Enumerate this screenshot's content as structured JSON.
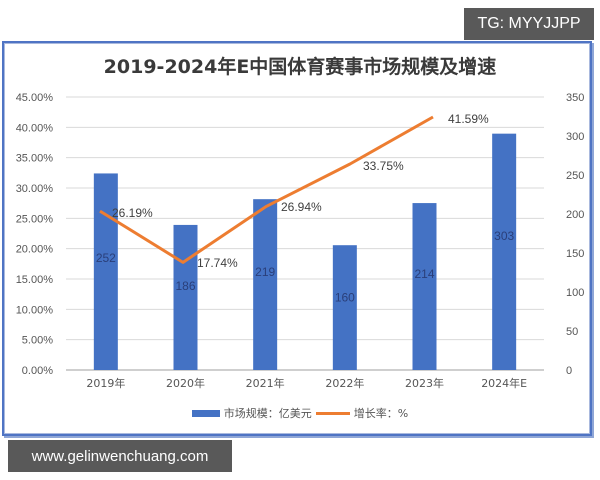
{
  "badges": {
    "top_right": "TG: MYYJJPP",
    "bottom_left": "www.gelinwenchuang.com"
  },
  "colors": {
    "bar": "#4472c4",
    "line": "#ed7d31",
    "frame": "#4f74c4"
  },
  "chart_data": {
    "type": "bar",
    "title": "2019-2024年E中国体育赛事市场规模及增速",
    "categories": [
      "2019年",
      "2020年",
      "2021年",
      "2022年",
      "2023年",
      "2024年E"
    ],
    "series": [
      {
        "name": "市场规模：亿美元",
        "type": "bar",
        "axis": "right",
        "values": [
          252,
          186,
          219,
          160,
          214,
          303
        ],
        "labels": [
          "252",
          "186",
          "219",
          "160",
          "214",
          "303"
        ]
      },
      {
        "name": "增长率：%",
        "type": "line",
        "axis": "left",
        "values": [
          26.19,
          17.74,
          26.94,
          null,
          33.75,
          41.59
        ],
        "labels": [
          "26.19%",
          "17.74%",
          "26.94%",
          "",
          "33.75%",
          "41.59%"
        ],
        "note": "line plotted 2019-2023 (33.75% label near 2022-2023 segment, 41.59% at 2023)"
      }
    ],
    "left_axis": {
      "ticks": [
        "0.00%",
        "5.00%",
        "10.00%",
        "15.00%",
        "20.00%",
        "25.00%",
        "30.00%",
        "35.00%",
        "40.00%",
        "45.00%"
      ],
      "range": [
        0,
        45
      ]
    },
    "right_axis": {
      "ticks": [
        "0",
        "50",
        "100",
        "150",
        "200",
        "250",
        "300",
        "350"
      ],
      "range": [
        0,
        350
      ]
    },
    "grid": true,
    "legend": {
      "position": "bottom",
      "entries": [
        "市场规模：亿美元",
        "增长率：%"
      ]
    }
  }
}
